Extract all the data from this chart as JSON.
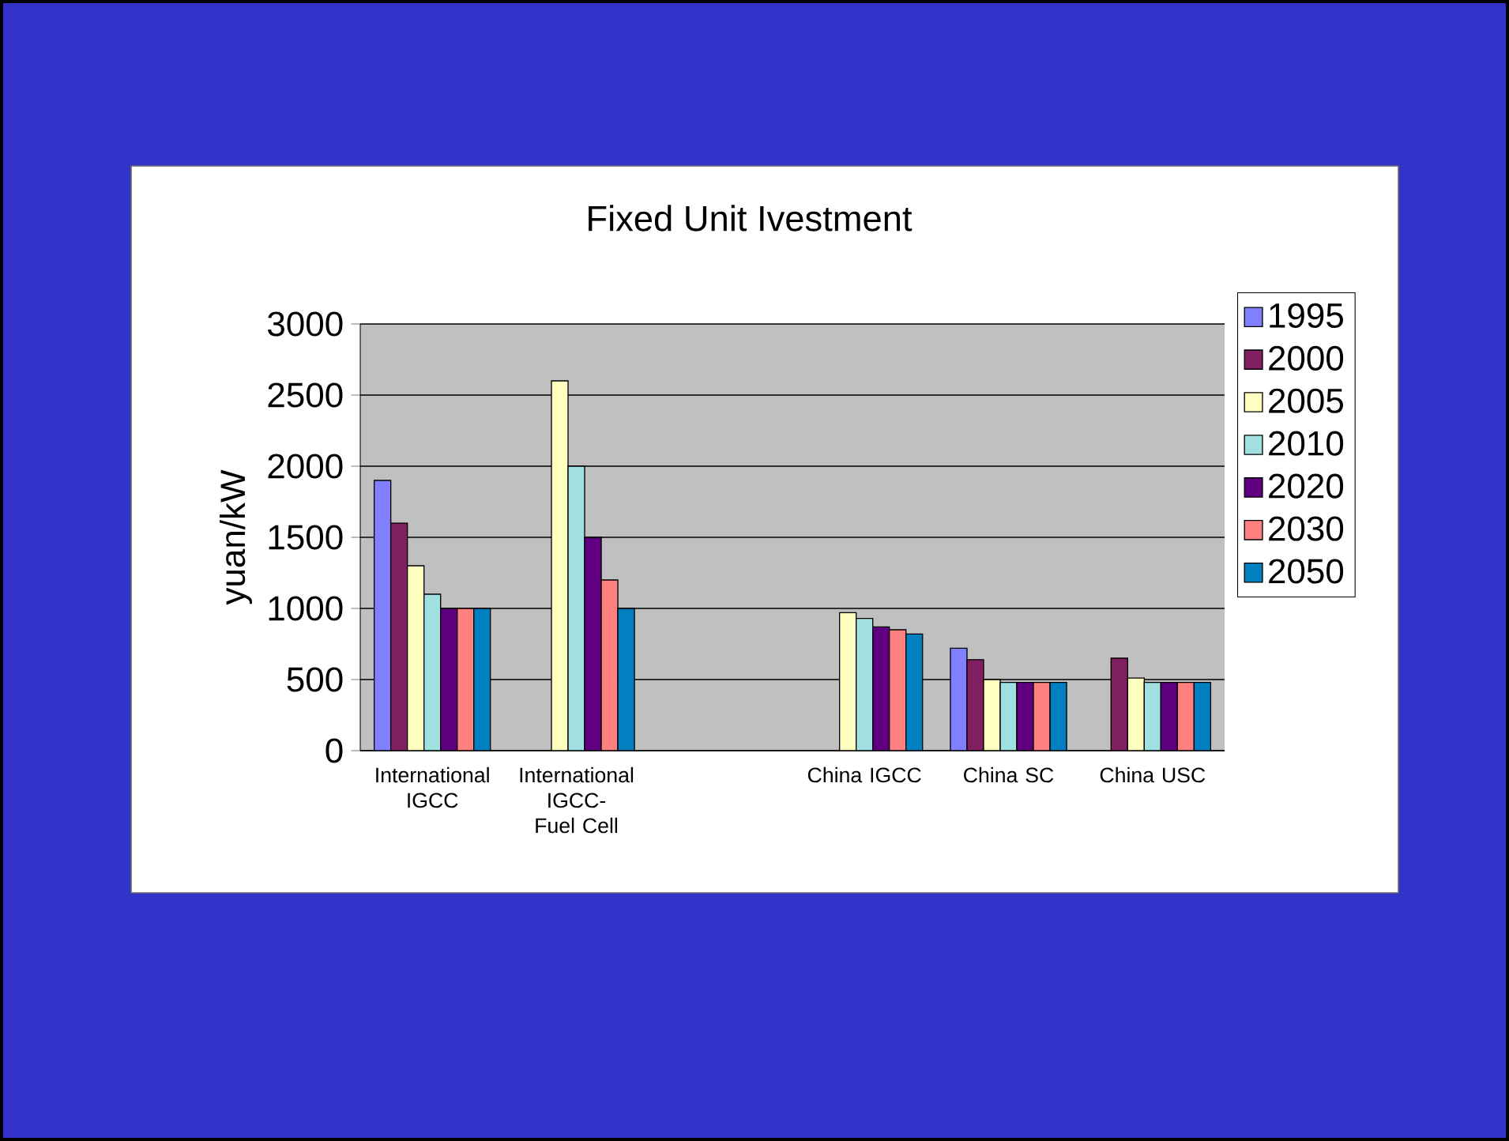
{
  "chart_data": {
    "type": "bar",
    "title": "Fixed Unit Ivestment",
    "ylabel": "yuan/kW",
    "categories": [
      "International IGCC",
      "International IGCC-Fuel Cell",
      null,
      "China IGCC",
      "China SC",
      "China USC"
    ],
    "series": [
      {
        "name": "1995",
        "color": "#8080ff",
        "values": [
          1900,
          null,
          null,
          null,
          720,
          null
        ]
      },
      {
        "name": "2000",
        "color": "#802060",
        "values": [
          1600,
          null,
          null,
          null,
          640,
          650
        ]
      },
      {
        "name": "2005",
        "color": "#ffffc0",
        "values": [
          1300,
          2600,
          null,
          970,
          500,
          510
        ]
      },
      {
        "name": "2010",
        "color": "#a0e0e0",
        "values": [
          1100,
          2000,
          null,
          930,
          480,
          480
        ]
      },
      {
        "name": "2020",
        "color": "#600080",
        "values": [
          1000,
          1500,
          null,
          870,
          480,
          480
        ]
      },
      {
        "name": "2030",
        "color": "#ff8080",
        "values": [
          1000,
          1200,
          null,
          850,
          480,
          480
        ]
      },
      {
        "name": "2050",
        "color": "#0080c0",
        "values": [
          1000,
          1000,
          null,
          820,
          480,
          480
        ]
      }
    ],
    "ylim": [
      0,
      3000
    ],
    "yticks": [
      0,
      500,
      1000,
      1500,
      2000,
      2500,
      3000
    ],
    "grid": "y",
    "legend": "right"
  }
}
